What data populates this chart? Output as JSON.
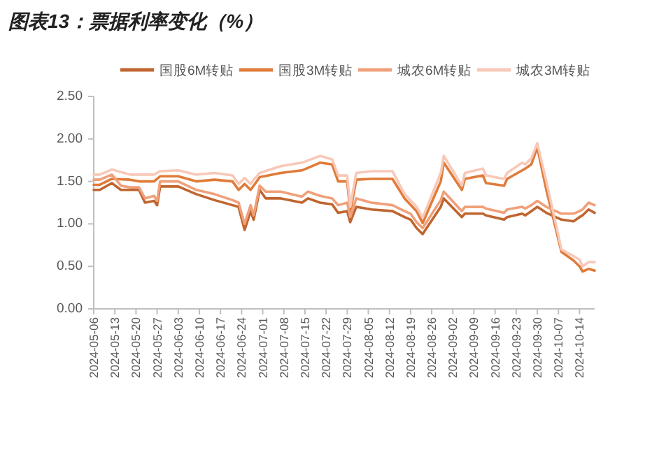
{
  "chart_data": {
    "type": "line",
    "title": "图表13：票据利率变化（%）",
    "xlim": [
      "2024-05-06",
      "2024-10-19"
    ],
    "xticks": [
      "2024-05-06",
      "2024-05-13",
      "2024-05-20",
      "2024-05-27",
      "2024-06-03",
      "2024-06-10",
      "2024-06-17",
      "2024-06-24",
      "2024-07-01",
      "2024-07-08",
      "2024-07-15",
      "2024-07-22",
      "2024-07-29",
      "2024-08-05",
      "2024-08-12",
      "2024-08-19",
      "2024-08-26",
      "2024-09-02",
      "2024-09-09",
      "2024-09-16",
      "2024-09-23",
      "2024-09-30",
      "2024-10-07",
      "2024-10-14"
    ],
    "ylim": [
      0,
      2.5
    ],
    "yticks": [
      {
        "value": 0,
        "label": "0.00"
      },
      {
        "value": 0.5,
        "label": "0.50"
      },
      {
        "value": 1,
        "label": "1.00"
      },
      {
        "value": 1.5,
        "label": "1.50"
      },
      {
        "value": 2,
        "label": "2.00"
      },
      {
        "value": 2.5,
        "label": "2.50"
      }
    ],
    "legend": "top",
    "series": [
      {
        "name": "国股6M转贴",
        "color": "#c0652f",
        "x": [
          "2024-05-06",
          "2024-05-08",
          "2024-05-12",
          "2024-05-15",
          "2024-05-18",
          "2024-05-21",
          "2024-05-23",
          "2024-05-26",
          "2024-05-27",
          "2024-05-28",
          "2024-06-03",
          "2024-06-09",
          "2024-06-15",
          "2024-06-21",
          "2024-06-23",
          "2024-06-25",
          "2024-06-27",
          "2024-06-28",
          "2024-06-30",
          "2024-07-02",
          "2024-07-07",
          "2024-07-14",
          "2024-07-16",
          "2024-07-20",
          "2024-07-24",
          "2024-07-26",
          "2024-07-29",
          "2024-07-30",
          "2024-08-01",
          "2024-08-06",
          "2024-08-13",
          "2024-08-17",
          "2024-08-19",
          "2024-08-21",
          "2024-08-23",
          "2024-08-29",
          "2024-08-30",
          "2024-09-05",
          "2024-09-06",
          "2024-09-12",
          "2024-09-13",
          "2024-09-19",
          "2024-09-20",
          "2024-09-25",
          "2024-09-26",
          "2024-09-28",
          "2024-09-30",
          "2024-10-03",
          "2024-10-08",
          "2024-10-12",
          "2024-10-14",
          "2024-10-15",
          "2024-10-17",
          "2024-10-19"
        ],
        "values": [
          1.4,
          1.4,
          1.48,
          1.4,
          1.4,
          1.4,
          1.25,
          1.27,
          1.22,
          1.44,
          1.44,
          1.35,
          1.28,
          1.22,
          1.2,
          0.93,
          1.15,
          1.05,
          1.4,
          1.3,
          1.3,
          1.25,
          1.3,
          1.25,
          1.23,
          1.13,
          1.15,
          1.02,
          1.2,
          1.17,
          1.15,
          1.08,
          1.05,
          0.95,
          0.88,
          1.2,
          1.3,
          1.08,
          1.12,
          1.12,
          1.1,
          1.05,
          1.08,
          1.12,
          1.1,
          1.15,
          1.2,
          1.13,
          1.05,
          1.03,
          1.08,
          1.1,
          1.17,
          1.13
        ]
      },
      {
        "name": "国股3M转贴",
        "color": "#e07b39",
        "x": [
          "2024-05-06",
          "2024-05-08",
          "2024-05-12",
          "2024-05-18",
          "2024-05-21",
          "2024-05-26",
          "2024-05-28",
          "2024-06-03",
          "2024-06-09",
          "2024-06-15",
          "2024-06-21",
          "2024-06-23",
          "2024-06-25",
          "2024-06-27",
          "2024-06-28",
          "2024-06-30",
          "2024-07-07",
          "2024-07-14",
          "2024-07-20",
          "2024-07-24",
          "2024-07-26",
          "2024-07-29",
          "2024-07-30",
          "2024-08-01",
          "2024-08-06",
          "2024-08-13",
          "2024-08-17",
          "2024-08-21",
          "2024-08-23",
          "2024-08-29",
          "2024-08-30",
          "2024-09-05",
          "2024-09-06",
          "2024-09-12",
          "2024-09-13",
          "2024-09-19",
          "2024-09-20",
          "2024-09-25",
          "2024-09-26",
          "2024-09-28",
          "2024-09-30",
          "2024-10-03",
          "2024-10-08",
          "2024-10-12",
          "2024-10-14",
          "2024-10-15",
          "2024-10-17",
          "2024-10-19"
        ],
        "values": [
          1.46,
          1.46,
          1.53,
          1.52,
          1.5,
          1.5,
          1.56,
          1.56,
          1.5,
          1.52,
          1.5,
          1.4,
          1.47,
          1.4,
          1.45,
          1.55,
          1.6,
          1.63,
          1.72,
          1.7,
          1.5,
          1.5,
          1.14,
          1.52,
          1.53,
          1.53,
          1.3,
          1.15,
          1.01,
          1.5,
          1.72,
          1.4,
          1.53,
          1.57,
          1.48,
          1.45,
          1.53,
          1.63,
          1.65,
          1.7,
          1.9,
          1.4,
          0.67,
          0.57,
          0.5,
          0.44,
          0.47,
          0.45
        ]
      },
      {
        "name": "城农6M转贴",
        "color": "#f0a07a",
        "x": [
          "2024-05-06",
          "2024-05-08",
          "2024-05-12",
          "2024-05-15",
          "2024-05-18",
          "2024-05-21",
          "2024-05-23",
          "2024-05-26",
          "2024-05-27",
          "2024-05-28",
          "2024-06-03",
          "2024-06-09",
          "2024-06-15",
          "2024-06-21",
          "2024-06-23",
          "2024-06-25",
          "2024-06-27",
          "2024-06-28",
          "2024-06-30",
          "2024-07-02",
          "2024-07-07",
          "2024-07-14",
          "2024-07-16",
          "2024-07-20",
          "2024-07-24",
          "2024-07-26",
          "2024-07-29",
          "2024-07-30",
          "2024-08-01",
          "2024-08-06",
          "2024-08-13",
          "2024-08-17",
          "2024-08-19",
          "2024-08-21",
          "2024-08-23",
          "2024-08-29",
          "2024-08-30",
          "2024-09-05",
          "2024-09-06",
          "2024-09-12",
          "2024-09-13",
          "2024-09-19",
          "2024-09-20",
          "2024-09-25",
          "2024-09-26",
          "2024-09-28",
          "2024-09-30",
          "2024-10-03",
          "2024-10-08",
          "2024-10-12",
          "2024-10-14",
          "2024-10-15",
          "2024-10-17",
          "2024-10-19"
        ],
        "values": [
          1.52,
          1.52,
          1.58,
          1.45,
          1.43,
          1.43,
          1.3,
          1.33,
          1.27,
          1.5,
          1.5,
          1.4,
          1.35,
          1.28,
          1.25,
          1.0,
          1.22,
          1.1,
          1.45,
          1.38,
          1.38,
          1.32,
          1.38,
          1.33,
          1.3,
          1.22,
          1.25,
          1.08,
          1.3,
          1.25,
          1.22,
          1.15,
          1.12,
          1.02,
          0.95,
          1.28,
          1.38,
          1.15,
          1.2,
          1.2,
          1.18,
          1.13,
          1.17,
          1.2,
          1.18,
          1.22,
          1.27,
          1.2,
          1.12,
          1.12,
          1.15,
          1.17,
          1.25,
          1.22
        ]
      },
      {
        "name": "城农3M转贴",
        "color": "#f8c8b8",
        "x": [
          "2024-05-06",
          "2024-05-08",
          "2024-05-12",
          "2024-05-18",
          "2024-05-21",
          "2024-05-26",
          "2024-05-28",
          "2024-06-03",
          "2024-06-09",
          "2024-06-15",
          "2024-06-21",
          "2024-06-23",
          "2024-06-25",
          "2024-06-27",
          "2024-06-28",
          "2024-06-30",
          "2024-07-07",
          "2024-07-14",
          "2024-07-20",
          "2024-07-24",
          "2024-07-26",
          "2024-07-29",
          "2024-07-30",
          "2024-08-01",
          "2024-08-06",
          "2024-08-13",
          "2024-08-17",
          "2024-08-21",
          "2024-08-23",
          "2024-08-29",
          "2024-08-30",
          "2024-09-05",
          "2024-09-06",
          "2024-09-12",
          "2024-09-13",
          "2024-09-19",
          "2024-09-20",
          "2024-09-25",
          "2024-09-26",
          "2024-09-28",
          "2024-09-30",
          "2024-10-03",
          "2024-10-08",
          "2024-10-12",
          "2024-10-14",
          "2024-10-15",
          "2024-10-17",
          "2024-10-19"
        ],
        "values": [
          1.58,
          1.58,
          1.64,
          1.58,
          1.58,
          1.58,
          1.62,
          1.63,
          1.58,
          1.6,
          1.57,
          1.47,
          1.54,
          1.47,
          1.52,
          1.6,
          1.68,
          1.72,
          1.8,
          1.76,
          1.57,
          1.57,
          1.2,
          1.6,
          1.62,
          1.62,
          1.35,
          1.2,
          1.07,
          1.6,
          1.8,
          1.45,
          1.6,
          1.65,
          1.57,
          1.53,
          1.6,
          1.72,
          1.7,
          1.77,
          1.95,
          1.5,
          0.7,
          0.62,
          0.58,
          0.5,
          0.55,
          0.55
        ]
      }
    ]
  }
}
